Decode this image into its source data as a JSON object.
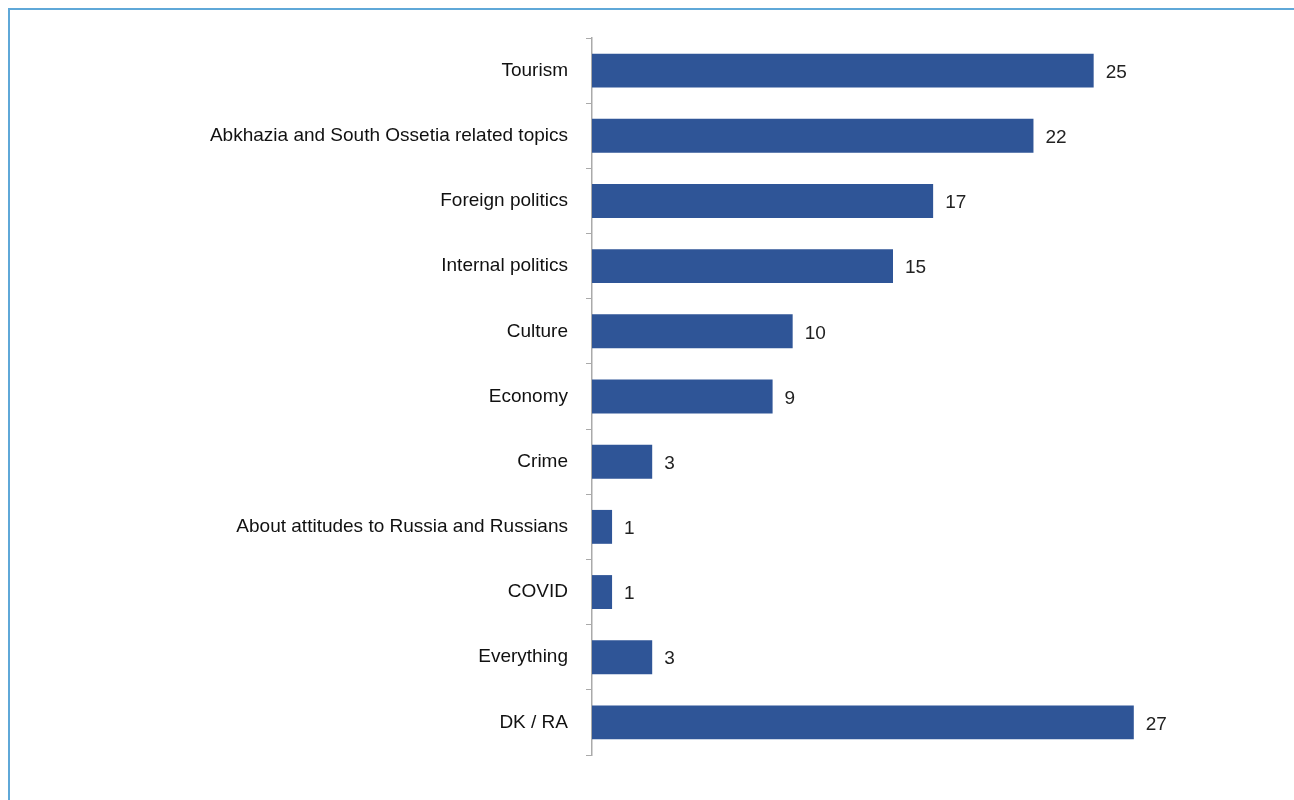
{
  "chart_data": {
    "type": "bar",
    "orientation": "horizontal",
    "categories": [
      "Tourism",
      "Abkhazia and South Ossetia related topics",
      "Foreign politics",
      "Internal politics",
      "Culture",
      "Economy",
      "Crime",
      "About attitudes to Russia and Russians",
      "COVID",
      "Everything",
      "DK / RA"
    ],
    "values": [
      25,
      22,
      17,
      15,
      10,
      9,
      3,
      1,
      1,
      3,
      27
    ],
    "color": "#2f5597",
    "data_labels": true,
    "tick_labels": "y",
    "grid": false,
    "legend": false
  }
}
